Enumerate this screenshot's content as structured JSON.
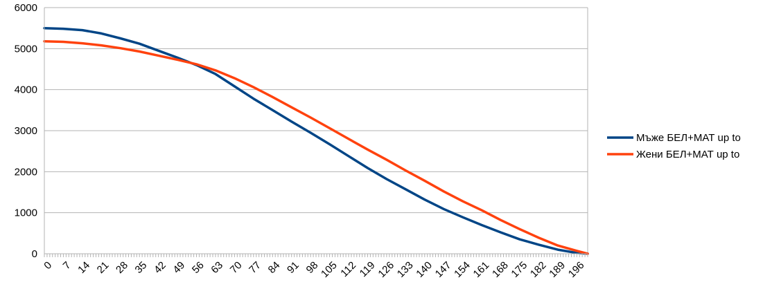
{
  "chart_data": {
    "type": "line",
    "title": "",
    "xlabel": "",
    "ylabel": "",
    "xlim": [
      0,
      200
    ],
    "ylim": [
      0,
      6000
    ],
    "yticks": [
      0,
      1000,
      2000,
      3000,
      4000,
      5000,
      6000
    ],
    "xtick_labels": [
      0,
      7,
      14,
      21,
      28,
      35,
      42,
      49,
      56,
      63,
      70,
      77,
      84,
      91,
      98,
      105,
      112,
      119,
      126,
      133,
      140,
      147,
      154,
      161,
      168,
      175,
      182,
      189,
      196
    ],
    "grid": true,
    "legend_position": "right",
    "series": [
      {
        "name": "Мъже БЕЛ+МАТ up to",
        "color": "#004586",
        "x": [
          0,
          7,
          14,
          21,
          28,
          35,
          42,
          49,
          56,
          63,
          70,
          77,
          84,
          91,
          98,
          105,
          112,
          119,
          126,
          133,
          140,
          147,
          154,
          161,
          168,
          175,
          182,
          189,
          196,
          200
        ],
        "y": [
          5500,
          5485,
          5450,
          5370,
          5250,
          5120,
          4950,
          4780,
          4600,
          4380,
          4080,
          3780,
          3500,
          3220,
          2950,
          2670,
          2380,
          2090,
          1820,
          1570,
          1320,
          1090,
          890,
          700,
          520,
          350,
          220,
          100,
          20,
          0
        ]
      },
      {
        "name": "Жени БЕЛ+МАТ up to",
        "color": "#ff420e",
        "x": [
          0,
          7,
          14,
          21,
          28,
          35,
          42,
          49,
          56,
          63,
          70,
          77,
          84,
          91,
          98,
          105,
          112,
          119,
          126,
          133,
          140,
          147,
          154,
          161,
          168,
          175,
          182,
          189,
          196,
          200
        ],
        "y": [
          5180,
          5165,
          5130,
          5080,
          5010,
          4930,
          4830,
          4730,
          4620,
          4470,
          4280,
          4060,
          3820,
          3570,
          3320,
          3060,
          2800,
          2540,
          2290,
          2030,
          1780,
          1520,
          1280,
          1060,
          820,
          600,
          390,
          200,
          70,
          0
        ]
      }
    ]
  }
}
